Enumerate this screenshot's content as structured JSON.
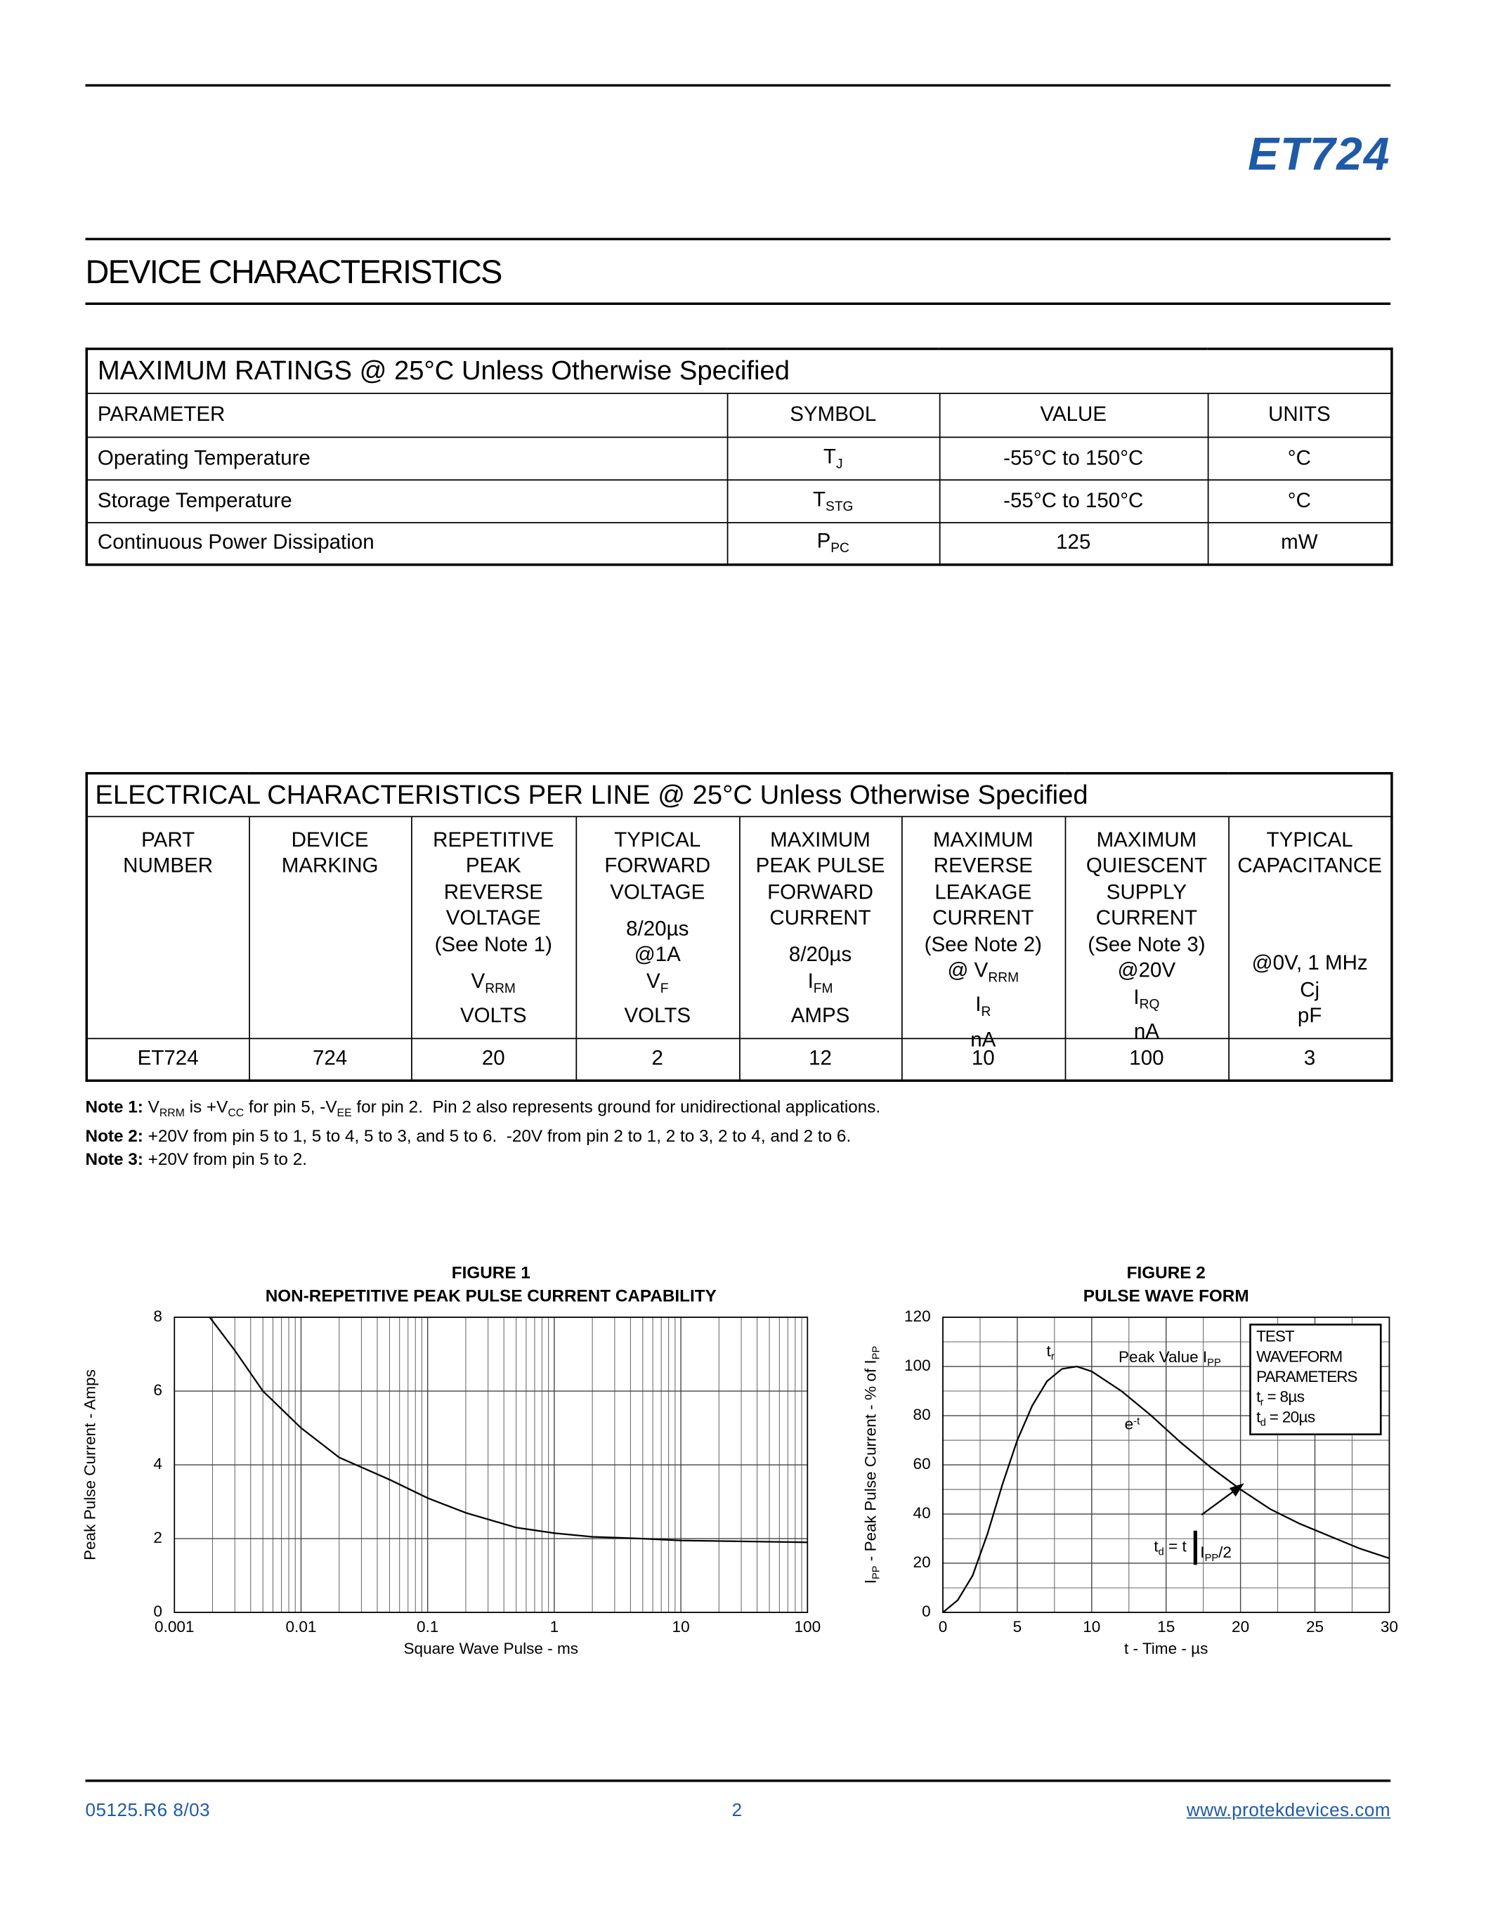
{
  "header": {
    "title": "ET724"
  },
  "section_title": "DEVICE CHARACTERISTICS",
  "max_ratings": {
    "title": "MAXIMUM RATINGS @ 25°C Unless Otherwise Specified",
    "headers": [
      "PARAMETER",
      "SYMBOL",
      "VALUE",
      "UNITS"
    ],
    "rows": [
      [
        "Operating Temperature",
        [
          "T",
          {
            "sub": "J"
          }
        ],
        "-55°C to 150°C",
        "°C"
      ],
      [
        "Storage Temperature",
        [
          "T",
          {
            "sub": "STG"
          }
        ],
        "-55°C to 150°C",
        "°C"
      ],
      [
        "Continuous Power Dissipation",
        [
          "P",
          {
            "sub": "PC"
          }
        ],
        125,
        "mW"
      ]
    ]
  },
  "electrical": {
    "title": "ELECTRICAL CHARACTERISTICS PER LINE @ 25°C Unless Otherwise Specified",
    "headers": [
      {
        "name": [
          "PART",
          "NUMBER"
        ]
      },
      {
        "name": [
          "DEVICE",
          "MARKING"
        ]
      },
      {
        "name": [
          "REPETITIVE",
          "PEAK",
          "REVERSE",
          "VOLTAGE",
          "(See Note 1)"
        ],
        "bottom": [
          [
            "V",
            {
              "sub": "RRM"
            }
          ],
          "VOLTS"
        ]
      },
      {
        "name": [
          "TYPICAL",
          "FORWARD",
          "VOLTAGE"
        ],
        "bottom": [
          "8/20µs",
          "@1A",
          [
            "V",
            {
              "sub": "F"
            }
          ],
          "VOLTS"
        ]
      },
      {
        "name": [
          "MAXIMUM",
          "PEAK PULSE",
          "FORWARD",
          "CURRENT"
        ],
        "bottom": [
          "8/20µs",
          [
            "I",
            {
              "sub": "FM"
            }
          ],
          "AMPS"
        ]
      },
      {
        "name": [
          "MAXIMUM",
          "REVERSE",
          "LEAKAGE",
          "CURRENT",
          "(See Note 2)"
        ],
        "bottom": [
          [
            "@ V",
            {
              "sub": "RRM"
            }
          ],
          [
            "I",
            {
              "sub": "R"
            }
          ],
          "nA"
        ]
      },
      {
        "name": [
          "MAXIMUM",
          "QUIESCENT",
          "SUPPLY",
          "CURRENT",
          "(See Note 3)"
        ],
        "bottom": [
          "@20V",
          [
            "I",
            {
              "sub": "RQ"
            }
          ],
          "nA"
        ]
      },
      {
        "name": [
          "TYPICAL",
          "CAPACITANCE"
        ],
        "bottom": [
          "@0V, 1 MHz",
          "Cj",
          "pF"
        ]
      }
    ],
    "rows": [
      [
        "ET724",
        724,
        20,
        2,
        12,
        10,
        100,
        3
      ]
    ]
  },
  "notes": [
    {
      "label": "Note 1:",
      "text": [
        " V",
        {
          "sub": "RRM"
        },
        " is +V",
        {
          "sub": "CC"
        },
        " for pin 5, -V",
        {
          "sub": "EE"
        },
        " for pin 2.  Pin 2 also represents ground for unidirectional applications."
      ]
    },
    {
      "label": "Note 2:",
      "text": [
        " +20V from pin 5 to 1, 5 to 4, 5 to 3, and 5 to 6.  -20V from pin 2 to 1, 2 to 3, 2 to 4, and 2 to 6."
      ]
    },
    {
      "label": "Note 3:",
      "text": [
        " +20V from pin 5 to 2."
      ]
    }
  ],
  "chart_data": [
    {
      "type": "line",
      "title": "FIGURE 1",
      "subtitle": "NON-REPETITIVE PEAK PULSE CURRENT CAPABILITY",
      "x_label": "Square Wave Pulse - ms",
      "y_label": "Peak Pulse Current - Amps",
      "x": [
        0.0019,
        0.003,
        0.005,
        0.01,
        0.02,
        0.05,
        0.1,
        0.2,
        0.5,
        1,
        2,
        5,
        10,
        100
      ],
      "values": [
        8,
        7.1,
        6.0,
        5.0,
        4.2,
        3.6,
        3.1,
        2.7,
        2.3,
        2.15,
        2.05,
        2.0,
        1.95,
        1.9
      ],
      "color": "#000000",
      "log_x": true,
      "grid": true,
      "xlim": [
        0.001,
        100
      ],
      "xticks": [
        0.001,
        0.01,
        0.1,
        1,
        10,
        100
      ],
      "ylim": [
        0,
        8
      ],
      "yticks": [
        0,
        2,
        4,
        6,
        8
      ]
    },
    {
      "type": "line",
      "title": "FIGURE 2",
      "subtitle": "PULSE WAVE FORM",
      "x_label": "t - Time - µs",
      "y_label": [
        "I",
        {
          "sub": "PP"
        },
        " - Peak Pulse Current - % of I",
        {
          "sub": "PP"
        }
      ],
      "x": [
        0,
        1,
        2,
        3,
        4,
        5,
        6,
        7,
        8,
        9,
        10,
        12,
        14,
        16,
        18,
        20,
        22,
        24,
        26,
        28,
        30
      ],
      "values": [
        0,
        5,
        15,
        32,
        52,
        70,
        84,
        94,
        99,
        100,
        98,
        90,
        80,
        69,
        59,
        50,
        42,
        36,
        31,
        26,
        22
      ],
      "color": "#000000",
      "log_x": false,
      "grid": true,
      "minor_grid": true,
      "xlim": [
        0,
        30
      ],
      "xticks": [
        0,
        5,
        10,
        15,
        20,
        25,
        30
      ],
      "ylim": [
        0,
        120
      ],
      "yticks": [
        0,
        20,
        40,
        60,
        80,
        100,
        120
      ],
      "annotations": [
        [
          "t",
          {
            "sub": "r"
          }
        ],
        [
          "Peak Value I",
          {
            "sub": "PP"
          }
        ],
        [
          "e",
          {
            "sup": "-t"
          }
        ],
        [
          "t",
          {
            "sub": "d"
          },
          " = t"
        ],
        [
          "I",
          {
            "sub": "PP"
          },
          "/2"
        ]
      ],
      "legend_box": {
        "title": [
          "TEST",
          "WAVEFORM",
          "PARAMETERS"
        ],
        "items": [
          [
            "t",
            {
              "sub": "r"
            },
            " = 8µs"
          ],
          [
            "t",
            {
              "sub": "d"
            },
            " = 20µs"
          ]
        ]
      }
    }
  ],
  "footer": {
    "left": "05125.R6 8/03",
    "center": "2",
    "right": "www.protekdevices.com"
  }
}
